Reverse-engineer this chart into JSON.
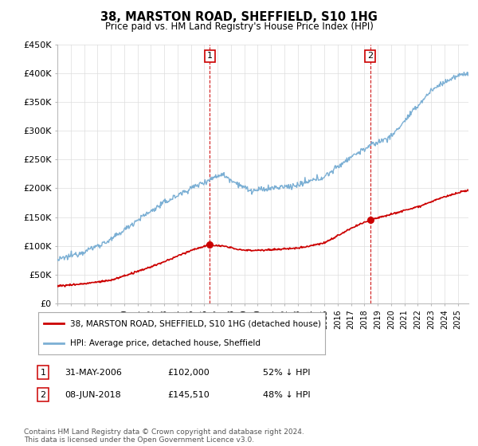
{
  "title": "38, MARSTON ROAD, SHEFFIELD, S10 1HG",
  "subtitle": "Price paid vs. HM Land Registry's House Price Index (HPI)",
  "ylabel_ticks": [
    "£0",
    "£50K",
    "£100K",
    "£150K",
    "£200K",
    "£250K",
    "£300K",
    "£350K",
    "£400K",
    "£450K"
  ],
  "ylim": [
    0,
    450000
  ],
  "xlim_start": 1995.0,
  "xlim_end": 2025.8,
  "sale1_x": 2006.417,
  "sale1_y": 102000,
  "sale2_x": 2018.44,
  "sale2_y": 145510,
  "legend_line1": "38, MARSTON ROAD, SHEFFIELD, S10 1HG (detached house)",
  "legend_line2": "HPI: Average price, detached house, Sheffield",
  "table_row1": [
    "1",
    "31-MAY-2006",
    "£102,000",
    "52% ↓ HPI"
  ],
  "table_row2": [
    "2",
    "08-JUN-2018",
    "£145,510",
    "48% ↓ HPI"
  ],
  "footnote": "Contains HM Land Registry data © Crown copyright and database right 2024.\nThis data is licensed under the Open Government Licence v3.0.",
  "sale_line_color": "#cc0000",
  "hpi_line_color": "#7bafd4",
  "sale_dot_color": "#cc0000",
  "vline_color": "#cc0000",
  "background_color": "#ffffff",
  "grid_color": "#dddddd",
  "label_box_color": "#cc0000"
}
